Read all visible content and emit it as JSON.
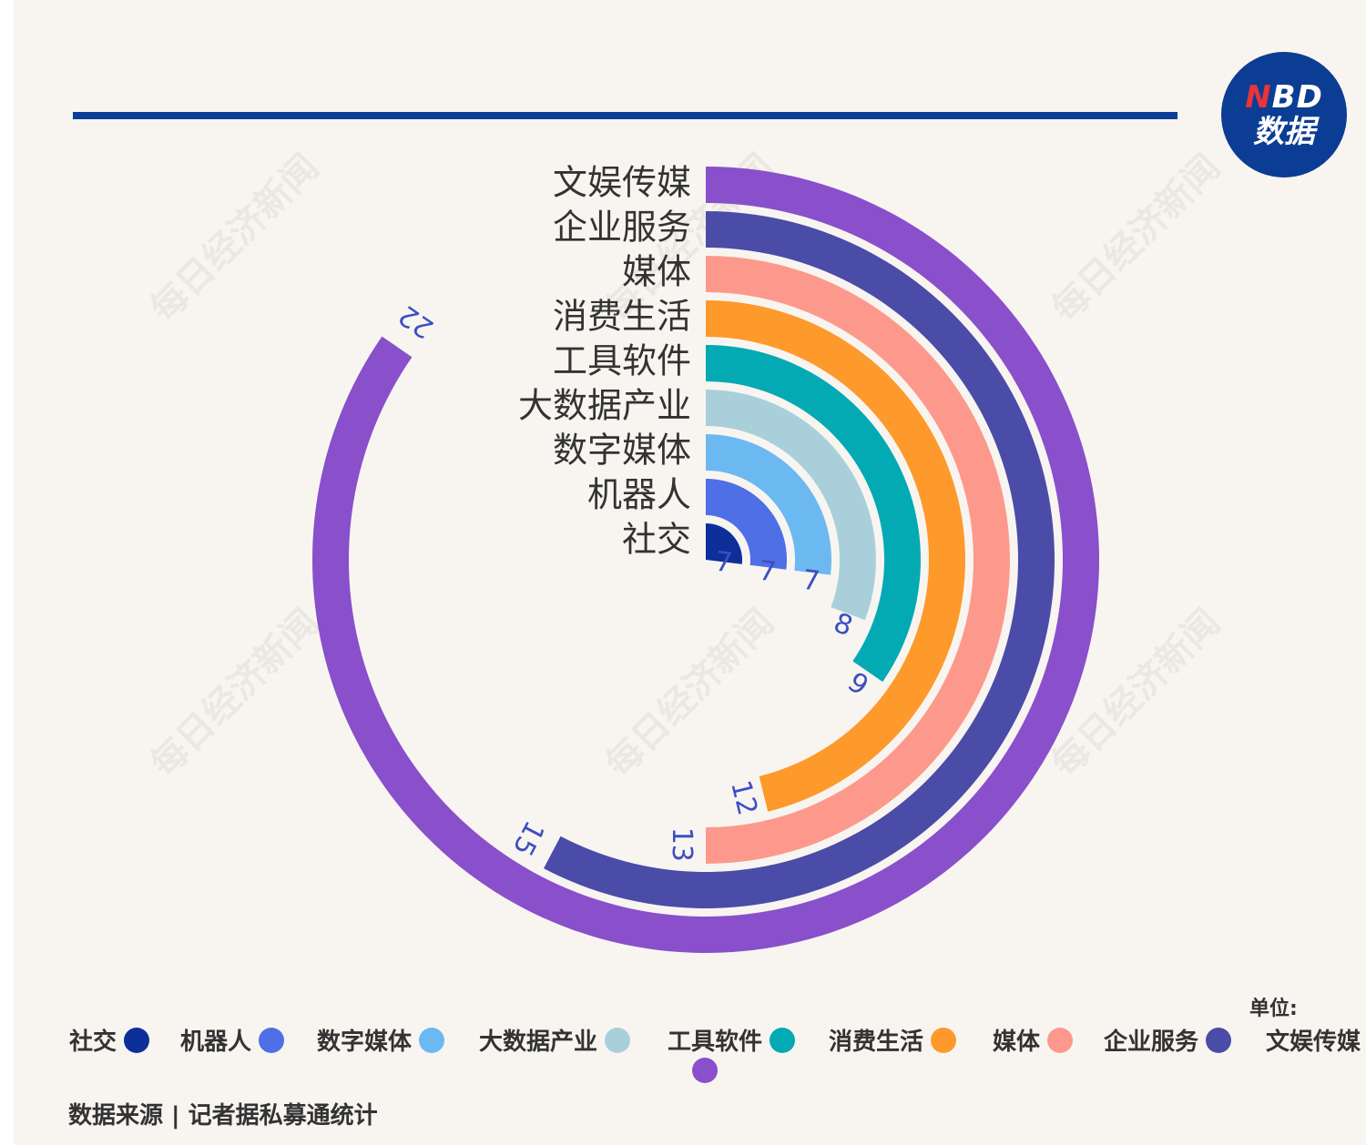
{
  "logo": {
    "line1_n": "N",
    "line1_rest": "BD",
    "line2": "数据"
  },
  "unit_label": "单位:",
  "source": "数据来源 | 记者据私募通统计",
  "watermark": "每日经济新闻",
  "chart_data": {
    "type": "radial-bar",
    "max_value": 26,
    "categories": [
      "社交",
      "机器人",
      "数字媒体",
      "大数据产业",
      "工具软件",
      "消费生活",
      "媒体",
      "企业服务",
      "文娱传媒"
    ],
    "values": [
      7,
      7,
      7,
      8,
      9,
      12,
      13,
      15,
      22
    ],
    "colors": [
      "#0d2f9a",
      "#4f6fe6",
      "#6cb9f2",
      "#a9d0da",
      "#04aab3",
      "#fe992b",
      "#fd998c",
      "#4a4ca8",
      "#8a4fcb"
    ],
    "value_label_color": "#3d4fc2",
    "legend": [
      {
        "label": "社交",
        "color": "#0d2f9a"
      },
      {
        "label": "机器人",
        "color": "#4f6fe6"
      },
      {
        "label": "数字媒体",
        "color": "#6cb9f2"
      },
      {
        "label": "大数据产业",
        "color": "#a9d0da"
      },
      {
        "label": "工具软件",
        "color": "#04aab3"
      },
      {
        "label": "消费生活",
        "color": "#fe992b"
      },
      {
        "label": "媒体",
        "color": "#fd998c"
      },
      {
        "label": "企业服务",
        "color": "#4a4ca8"
      },
      {
        "label": "文娱传媒",
        "color": "#8a4fcb"
      }
    ]
  }
}
